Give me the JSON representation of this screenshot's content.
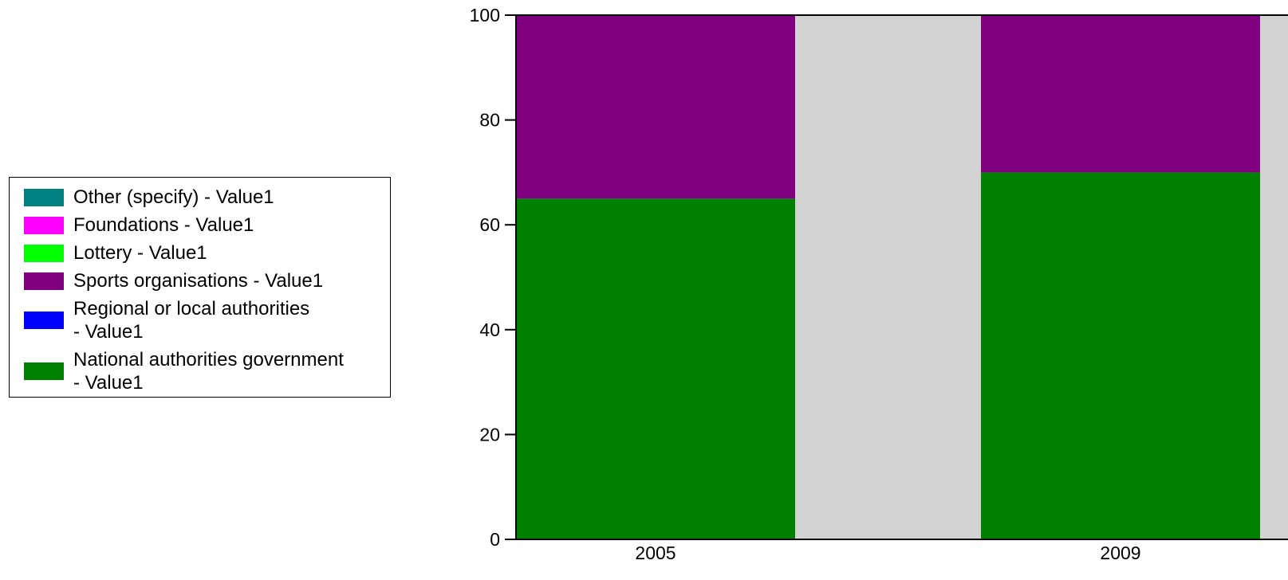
{
  "chart_data": {
    "type": "bar",
    "stacked": true,
    "categories": [
      "2005",
      "2009"
    ],
    "series": [
      {
        "name": "National authorities government - Value1",
        "color": "#008000",
        "values": [
          65,
          70
        ]
      },
      {
        "name": "Regional or local authorities - Value1",
        "color": "#0000ff",
        "values": [
          0,
          0
        ]
      },
      {
        "name": "Sports organisations - Value1",
        "color": "#800080",
        "values": [
          35,
          30
        ]
      },
      {
        "name": "Lottery - Value1",
        "color": "#00ff00",
        "values": [
          0,
          0
        ]
      },
      {
        "name": "Foundations - Value1",
        "color": "#ff00ff",
        "values": [
          0,
          0
        ]
      },
      {
        "name": "Other (specify) - Value1",
        "color": "#008080",
        "values": [
          0,
          0
        ]
      }
    ],
    "ylim": [
      0,
      100
    ],
    "yticks": [
      0,
      20,
      40,
      60,
      80,
      100
    ],
    "background_color": "#d3d3d3",
    "legend_position": "left",
    "grid": false
  },
  "legend": {
    "items": [
      {
        "line1": "Other (specify) - Value1",
        "line2": "",
        "color": "#008080"
      },
      {
        "line1": "Foundations - Value1",
        "line2": "",
        "color": "#ff00ff"
      },
      {
        "line1": "Lottery - Value1",
        "line2": "",
        "color": "#00ff00"
      },
      {
        "line1": "Sports organisations - Value1",
        "line2": "",
        "color": "#800080"
      },
      {
        "line1": "Regional or local authorities",
        "line2": "- Value1",
        "color": "#0000ff"
      },
      {
        "line1": "National authorities government",
        "line2": "- Value1",
        "color": "#008000"
      }
    ]
  }
}
